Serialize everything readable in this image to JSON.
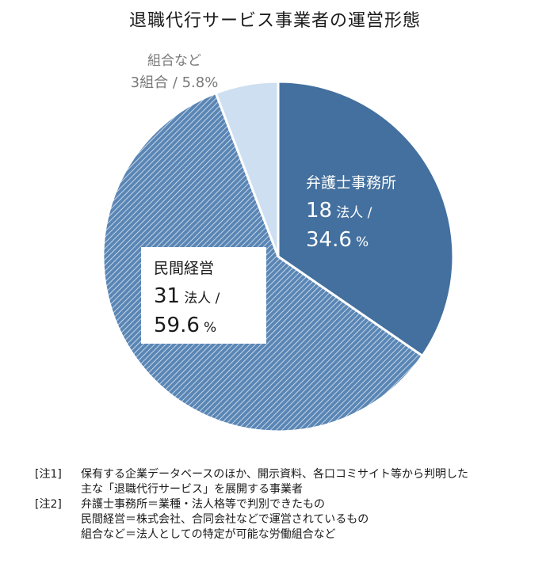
{
  "chart_data": {
    "type": "pie",
    "title": "退職代行サービス事業者の運営形態",
    "slices": [
      {
        "name": "弁護士事務所",
        "count": 18,
        "count_unit": "法人",
        "percent": 34.6,
        "color": "#43709e",
        "pattern": "solid"
      },
      {
        "name": "民間経営",
        "count": 31,
        "count_unit": "法人",
        "percent": 59.6,
        "color": "#4f7cac",
        "pattern": "hatched"
      },
      {
        "name": "組合など",
        "count": 3,
        "count_unit": "組合",
        "percent": 5.8,
        "color": "#cddff1",
        "pattern": "solid"
      }
    ]
  },
  "labels": {
    "bengoshi": {
      "name": "弁護士事務所",
      "count": "18",
      "unit": "法人 /",
      "percent": "34.6",
      "pct_sign": "%"
    },
    "minkan": {
      "name": "民間経営",
      "count": "31",
      "unit": "法人 /",
      "percent": "59.6",
      "pct_sign": "%"
    },
    "kumiai": {
      "name": "組合など",
      "line2": "3組合 / 5.8%"
    }
  },
  "notes": [
    {
      "tag": "[注1]",
      "lines": [
        "保有する企業データベースのほか、開示資料、各口コミサイト等から判明した",
        "主な「退職代行サービス」を展開する事業者"
      ]
    },
    {
      "tag": "[注2]",
      "lines": [
        "弁護士事務所＝業種・法人格等で判別できたもの",
        "民間経営＝株式会社、合同会社などで運営されているもの",
        "組合など＝法人としての特定が可能な労働組合など"
      ]
    }
  ]
}
